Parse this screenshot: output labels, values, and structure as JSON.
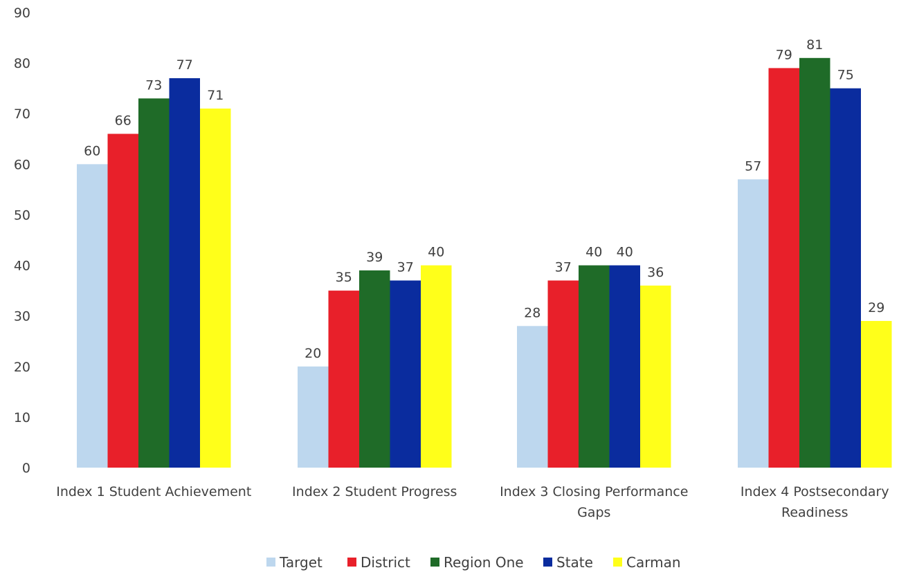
{
  "chart_data": {
    "type": "bar",
    "title": "",
    "xlabel": "",
    "ylabel": "",
    "ylim": [
      0,
      90
    ],
    "yticks": [
      0,
      10,
      20,
      30,
      40,
      50,
      60,
      70,
      80,
      90
    ],
    "grid": false,
    "legend_position": "bottom",
    "categories": [
      [
        "Index 1 Student Achievement"
      ],
      [
        "Index 2 Student Progress"
      ],
      [
        "Index 3 Closing Performance",
        "Gaps"
      ],
      [
        "Index 4 Postsecondary",
        "Readiness"
      ]
    ],
    "series": [
      {
        "name": "Target",
        "color": "#BDD7EE",
        "values": [
          60,
          20,
          28,
          57
        ]
      },
      {
        "name": "District",
        "color": "#E8202A",
        "values": [
          66,
          35,
          37,
          79
        ]
      },
      {
        "name": "Region One",
        "color": "#1F6B28",
        "values": [
          73,
          39,
          40,
          81
        ]
      },
      {
        "name": "State",
        "color": "#0A2C9E",
        "values": [
          77,
          37,
          40,
          75
        ]
      },
      {
        "name": "Carman",
        "color": "#FFFF1A",
        "values": [
          71,
          40,
          36,
          29
        ]
      }
    ]
  }
}
